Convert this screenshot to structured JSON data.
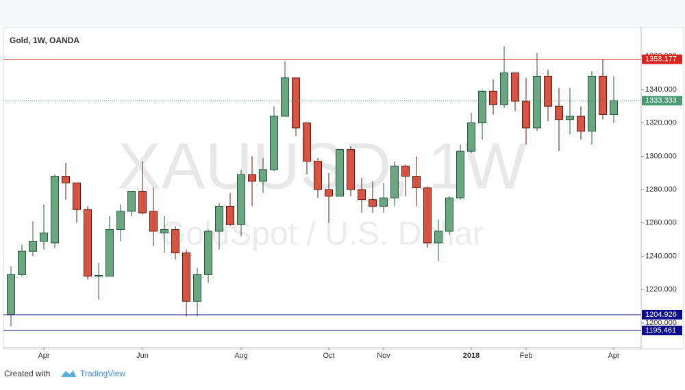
{
  "chart_data": {
    "type": "candlestick",
    "title": "Gold, 1W, OANDA",
    "watermark": "XAUUSD, 1W",
    "watermark_subtitle": "GoldSpot / U.S. Dollar",
    "categories": [
      null,
      null,
      null,
      "Apr",
      null,
      null,
      null,
      null,
      null,
      null,
      null,
      null,
      "Jun",
      null,
      null,
      null,
      null,
      null,
      null,
      null,
      null,
      "Aug",
      null,
      null,
      null,
      null,
      null,
      null,
      null,
      "Oct",
      null,
      null,
      null,
      null,
      "Nov",
      null,
      null,
      null,
      null,
      null,
      null,
      null,
      "2018",
      null,
      null,
      null,
      null,
      "Feb",
      null,
      null,
      null,
      null,
      null,
      null,
      null,
      "Apr"
    ],
    "open": [
      1205,
      1229,
      1243,
      1249,
      1248,
      1288,
      1284,
      1268,
      1228,
      1228,
      1256,
      1267,
      1279,
      1267,
      1254,
      1256,
      1242,
      1213,
      1229,
      1255,
      1270,
      1259,
      1289,
      1285,
      1292,
      1324,
      1347,
      1320,
      1297,
      1280,
      1276,
      1304,
      1280,
      1274,
      1270,
      1275,
      1294,
      1288,
      1281,
      1248,
      1255,
      1275,
      1303,
      1320,
      1339,
      1331,
      1350,
      1333,
      1317,
      1348,
      1330,
      1322,
      1324,
      1315,
      1348,
      1325
    ],
    "high": [
      1234,
      1247,
      1261,
      1271,
      1289,
      1296,
      1284,
      1270,
      1236,
      1264,
      1271,
      1279,
      1297,
      1281,
      1264,
      1258,
      1244,
      1233,
      1256,
      1272,
      1278,
      1292,
      1300,
      1299,
      1330,
      1357,
      1347,
      1320,
      1299,
      1290,
      1304,
      1306,
      1287,
      1285,
      1284,
      1297,
      1295,
      1300,
      1282,
      1262,
      1276,
      1307,
      1326,
      1340,
      1346,
      1366,
      1350,
      1347,
      1362,
      1352,
      1341,
      1341,
      1330,
      1351,
      1358,
      1348
    ],
    "low": [
      1198,
      1228,
      1240,
      1244,
      1245,
      1274,
      1260,
      1226,
      1214,
      1228,
      1249,
      1264,
      1265,
      1246,
      1242,
      1238,
      1204,
      1204,
      1224,
      1244,
      1258,
      1252,
      1270,
      1278,
      1291,
      1324,
      1312,
      1289,
      1275,
      1260,
      1276,
      1276,
      1266,
      1266,
      1266,
      1270,
      1276,
      1270,
      1245,
      1237,
      1253,
      1274,
      1302,
      1310,
      1325,
      1329,
      1327,
      1307,
      1315,
      1321,
      1303,
      1313,
      1310,
      1307,
      1322,
      1320
    ],
    "close": [
      1229,
      1243,
      1249,
      1254,
      1288,
      1284,
      1268,
      1228,
      1228.5,
      1256,
      1267,
      1279,
      1266,
      1255,
      1256,
      1242,
      1213,
      1229,
      1255,
      1270,
      1259,
      1289,
      1285,
      1292,
      1324,
      1347,
      1317,
      1297,
      1280,
      1276,
      1304,
      1280,
      1274,
      1270,
      1275,
      1294,
      1288,
      1281,
      1248,
      1255,
      1275,
      1303,
      1320,
      1339,
      1331,
      1350,
      1333,
      1317,
      1348,
      1330,
      1322,
      1324,
      1315,
      1348,
      1325,
      1333.333
    ],
    "up_color": "#6ba583",
    "down_color": "#d75442",
    "ylim": [
      1185.2,
      1376.5
    ],
    "yticks": [
      {
        "value": 1200,
        "label": "1200.000"
      },
      {
        "value": 1220,
        "label": "1220.000"
      },
      {
        "value": 1240,
        "label": "1240.000"
      },
      {
        "value": 1260,
        "label": "1260.000"
      },
      {
        "value": 1280,
        "label": "1280.000"
      },
      {
        "value": 1300,
        "label": "1300.000"
      },
      {
        "value": 1320,
        "label": "1320.000"
      },
      {
        "value": 1340,
        "label": "1340.000"
      },
      {
        "value": 1360,
        "label": "1360.000"
      }
    ],
    "hlines": [
      {
        "value": 1358.177,
        "color": "#e0201b",
        "style": "solid"
      },
      {
        "value": 1333.333,
        "color": "#4c9c73",
        "style": "dotted"
      },
      {
        "value": 1204.926,
        "color": "#0a0a8c",
        "style": "solid"
      },
      {
        "value": 1195.461,
        "color": "#0a0a8c",
        "style": "solid"
      }
    ]
  },
  "footer": {
    "prefix": "Created with",
    "brand": "TradingView"
  }
}
